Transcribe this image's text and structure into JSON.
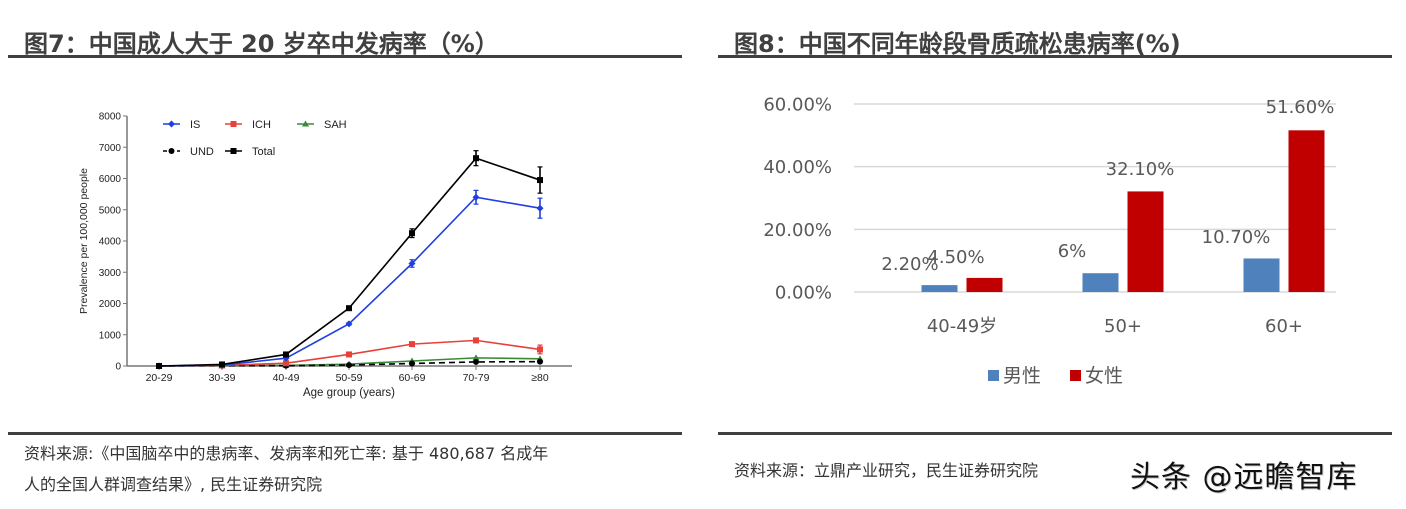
{
  "left_panel": {
    "title": "图7：中国成人大于 20 岁卒中发病率（%）",
    "source_line1": "资料来源:《中国脑卒中的患病率、发病率和死亡率: 基于 480,687 名成年",
    "source_line2": "人的全国人群调查结果》, 民生证券研究院"
  },
  "right_panel": {
    "title": "图8：中国不同年龄段骨质疏松患病率(%)",
    "source": "资料来源：立鼎产业研究，民生证券研究院",
    "watermark": "头条 @远瞻智库"
  },
  "chart_data": [
    {
      "type": "line",
      "title": "",
      "xlabel": "Age group (years)",
      "ylabel": "Prevalence per 100,000 people",
      "ylim": [
        0,
        8000
      ],
      "yticks": [
        "0",
        "1000",
        "2000",
        "3000",
        "4000",
        "5000",
        "6000",
        "7000",
        "8000"
      ],
      "grid": false,
      "legend_position": "top-left",
      "categories": [
        "20-29",
        "30-39",
        "40-49",
        "50-59",
        "60-69",
        "70-79",
        "≥80"
      ],
      "series": [
        {
          "name": "IS",
          "color": "#1f3fe0",
          "style": "solid",
          "marker": "diamond",
          "values": [
            0,
            30,
            250,
            1350,
            3280,
            5400,
            5050
          ]
        },
        {
          "name": "ICH",
          "color": "#e8403a",
          "style": "solid",
          "marker": "square",
          "values": [
            0,
            20,
            90,
            370,
            700,
            820,
            530
          ]
        },
        {
          "name": "SAH",
          "color": "#3a8a3a",
          "style": "solid",
          "marker": "triangle",
          "values": [
            0,
            10,
            20,
            60,
            160,
            260,
            230
          ]
        },
        {
          "name": "UND",
          "color": "#000000",
          "style": "dashed",
          "marker": "circle",
          "values": [
            0,
            10,
            10,
            30,
            80,
            130,
            140
          ]
        },
        {
          "name": "Total",
          "color": "#000000",
          "style": "solid",
          "marker": "square",
          "values": [
            0,
            50,
            370,
            1850,
            4250,
            6650,
            5950
          ]
        }
      ]
    },
    {
      "type": "bar",
      "title": "",
      "xlabel": "",
      "ylabel": "",
      "ylim": [
        0,
        0.6
      ],
      "yticks": [
        "0.00%",
        "20.00%",
        "40.00%",
        "60.00%"
      ],
      "grid": true,
      "legend_position": "bottom",
      "categories": [
        "40-49岁",
        "50+",
        "60+"
      ],
      "series": [
        {
          "name": "男性",
          "color": "#4F81BD",
          "values": [
            0.022,
            0.06,
            0.107
          ],
          "labels": [
            "2.20%",
            "6%",
            "10.70%"
          ]
        },
        {
          "name": "女性",
          "color": "#C00000",
          "values": [
            0.045,
            0.321,
            0.516
          ],
          "labels": [
            "4.50%",
            "32.10%",
            "51.60%"
          ]
        }
      ]
    }
  ]
}
